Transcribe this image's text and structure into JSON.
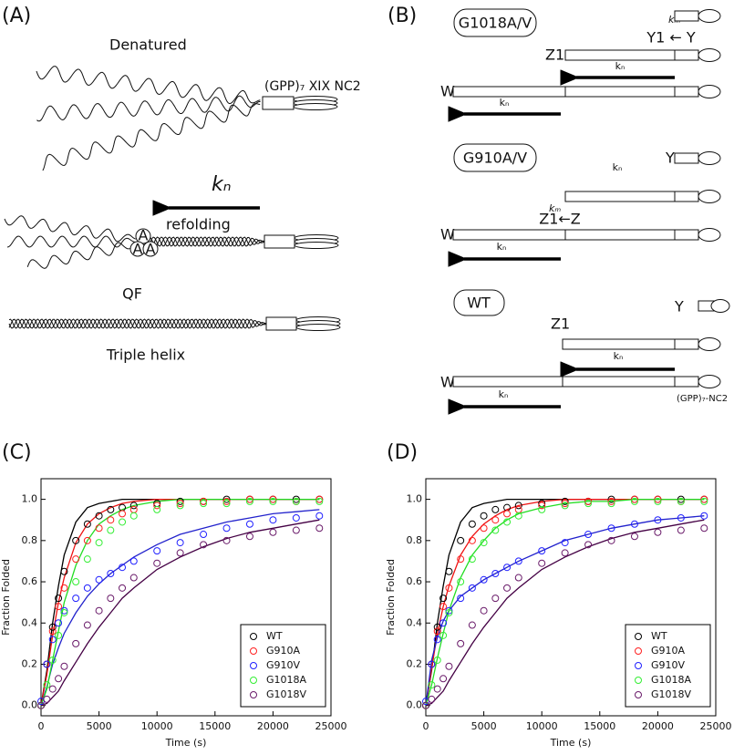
{
  "panel_a": {
    "label": "(A)",
    "denatured": "Denatured",
    "construct": "(GPP)₇ XIX NC2",
    "rate": "kₙ",
    "refolding": "refolding",
    "nuclei": [
      "A",
      "A",
      "A"
    ],
    "qf": "QF",
    "triple_helix": "Triple helix"
  },
  "panel_b": {
    "label": "(B)",
    "groups": [
      {
        "name": "G1018A/V",
        "km": "kₘ",
        "y": "Y1 ← Y",
        "z": "Z1",
        "kn_z": "kₙ",
        "w": "W",
        "kn_w": "kₙ"
      },
      {
        "name": "G910A/V",
        "kn_top": "kₙ",
        "y": "Y",
        "km": "kₘ",
        "z": "Z1←Z",
        "w": "W",
        "kn_w": "kₙ"
      },
      {
        "name": "WT",
        "y": "Y",
        "z": "Z1",
        "kn_z": "kₙ",
        "w": "W",
        "kn_w": "kₙ",
        "construct": "(GPP)₇-NC2"
      }
    ]
  },
  "chart_data": [
    {
      "type": "scatter",
      "panel_label": "(C)",
      "xlabel": "Time (s)",
      "ylabel": "Fraction Folded",
      "xlim": [
        0,
        25000
      ],
      "ylim": [
        -0.05,
        1.1
      ],
      "xticks": [
        0,
        5000,
        10000,
        15000,
        20000,
        25000
      ],
      "yticks": [
        {
          "value": 0,
          "label": "0.0"
        },
        {
          "value": 0.2,
          "label": "0.2"
        },
        {
          "value": 0.4,
          "label": "0.4"
        },
        {
          "value": 0.6,
          "label": "0.6"
        },
        {
          "value": 0.8,
          "label": "0.8"
        },
        {
          "value": 1,
          "label": "1.0"
        }
      ],
      "legend": "lower right",
      "x": [
        0,
        500,
        1000,
        1500,
        2000,
        3000,
        4000,
        5000,
        6000,
        7000,
        8000,
        10000,
        12000,
        14000,
        16000,
        18000,
        20000,
        22000,
        24000
      ],
      "series": [
        {
          "name": "WT",
          "color": "#000000",
          "fit_color": "#000000",
          "values": [
            0,
            0.2,
            0.38,
            0.52,
            0.65,
            0.8,
            0.88,
            0.92,
            0.95,
            0.96,
            0.97,
            0.98,
            0.99,
            0.99,
            1,
            1,
            1,
            1,
            1
          ],
          "fit": [
            0,
            0.17,
            0.4,
            0.58,
            0.73,
            0.89,
            0.96,
            0.98,
            0.99,
            1,
            1,
            1,
            1,
            1,
            1,
            1,
            1,
            1,
            1
          ]
        },
        {
          "name": "G910A",
          "color": "#ff2020",
          "fit_color": "#ee1111",
          "values": [
            0,
            0.2,
            0.36,
            0.48,
            0.57,
            0.71,
            0.8,
            0.86,
            0.9,
            0.93,
            0.95,
            0.97,
            0.98,
            0.99,
            0.99,
            1,
            1,
            0.99,
            1
          ],
          "fit": [
            0,
            0.15,
            0.34,
            0.5,
            0.62,
            0.79,
            0.88,
            0.93,
            0.96,
            0.98,
            0.99,
            1,
            1,
            1,
            1,
            1,
            1,
            1,
            1
          ]
        },
        {
          "name": "G910V",
          "color": "#2020ff",
          "fit_color": "#2222cc",
          "values": [
            0.02,
            0.2,
            0.32,
            0.4,
            0.46,
            0.52,
            0.57,
            0.61,
            0.64,
            0.67,
            0.7,
            0.75,
            0.79,
            0.83,
            0.86,
            0.88,
            0.9,
            0.91,
            0.92
          ],
          "fit": [
            0,
            0.09,
            0.2,
            0.28,
            0.35,
            0.45,
            0.53,
            0.59,
            0.64,
            0.68,
            0.72,
            0.78,
            0.83,
            0.86,
            0.89,
            0.91,
            0.93,
            0.94,
            0.95
          ]
        },
        {
          "name": "G1018A",
          "color": "#33ee33",
          "fit_color": "#22dd22",
          "values": [
            0,
            0.1,
            0.22,
            0.34,
            0.45,
            0.6,
            0.71,
            0.79,
            0.85,
            0.89,
            0.92,
            0.95,
            0.97,
            0.98,
            0.98,
            0.99,
            0.99,
            0.99,
            0.99
          ],
          "fit": [
            0,
            0.08,
            0.22,
            0.36,
            0.5,
            0.68,
            0.8,
            0.88,
            0.92,
            0.95,
            0.97,
            0.99,
            1,
            1,
            1,
            1,
            1,
            1,
            1
          ]
        },
        {
          "name": "G1018V",
          "color": "#6a1b6a",
          "fit_color": "#440044",
          "values": [
            0,
            0.03,
            0.08,
            0.13,
            0.19,
            0.3,
            0.39,
            0.46,
            0.52,
            0.57,
            0.62,
            0.69,
            0.74,
            0.78,
            0.8,
            0.82,
            0.84,
            0.85,
            0.86
          ],
          "fit": [
            0,
            0.01,
            0.04,
            0.07,
            0.12,
            0.21,
            0.3,
            0.38,
            0.45,
            0.52,
            0.57,
            0.66,
            0.72,
            0.77,
            0.81,
            0.84,
            0.86,
            0.88,
            0.9
          ]
        }
      ]
    },
    {
      "type": "scatter",
      "panel_label": "(D)",
      "xlabel": "Time (s)",
      "ylabel": "Fraction Folded",
      "xlim": [
        0,
        25000
      ],
      "ylim": [
        -0.05,
        1.1
      ],
      "xticks": [
        0,
        5000,
        10000,
        15000,
        20000,
        25000
      ],
      "yticks": [
        {
          "value": 0,
          "label": "0.0"
        },
        {
          "value": 0.2,
          "label": "0.2"
        },
        {
          "value": 0.4,
          "label": "0.4"
        },
        {
          "value": 0.6,
          "label": "0.6"
        },
        {
          "value": 0.8,
          "label": "0.8"
        },
        {
          "value": 1,
          "label": "1.0"
        }
      ],
      "legend": "lower right",
      "x": [
        0,
        500,
        1000,
        1500,
        2000,
        3000,
        4000,
        5000,
        6000,
        7000,
        8000,
        10000,
        12000,
        14000,
        16000,
        18000,
        20000,
        22000,
        24000
      ],
      "series": [
        {
          "name": "WT",
          "color": "#000000",
          "fit_color": "#000000",
          "values": [
            0,
            0.2,
            0.38,
            0.52,
            0.65,
            0.8,
            0.88,
            0.92,
            0.95,
            0.96,
            0.97,
            0.98,
            0.99,
            0.99,
            1,
            1,
            1,
            1,
            1
          ],
          "fit": [
            0,
            0.17,
            0.4,
            0.58,
            0.73,
            0.89,
            0.96,
            0.98,
            0.99,
            1,
            1,
            1,
            1,
            1,
            1,
            1,
            1,
            1,
            1
          ]
        },
        {
          "name": "G910A",
          "color": "#ff2020",
          "fit_color": "#ee1111",
          "values": [
            0,
            0.2,
            0.36,
            0.48,
            0.57,
            0.71,
            0.8,
            0.86,
            0.9,
            0.93,
            0.95,
            0.97,
            0.98,
            0.99,
            0.99,
            1,
            1,
            0.99,
            1
          ],
          "fit": [
            0,
            0.18,
            0.35,
            0.48,
            0.58,
            0.73,
            0.82,
            0.88,
            0.92,
            0.95,
            0.97,
            0.99,
            1,
            1,
            1,
            1,
            1,
            1,
            1
          ]
        },
        {
          "name": "G910V",
          "color": "#2020ff",
          "fit_color": "#2222cc",
          "values": [
            0.02,
            0.2,
            0.32,
            0.4,
            0.46,
            0.52,
            0.57,
            0.61,
            0.64,
            0.67,
            0.7,
            0.75,
            0.79,
            0.83,
            0.86,
            0.88,
            0.9,
            0.91,
            0.92
          ],
          "fit": [
            0,
            0.22,
            0.33,
            0.41,
            0.46,
            0.53,
            0.57,
            0.61,
            0.64,
            0.67,
            0.7,
            0.75,
            0.8,
            0.83,
            0.86,
            0.88,
            0.9,
            0.91,
            0.92
          ]
        },
        {
          "name": "G1018A",
          "color": "#33ee33",
          "fit_color": "#22dd22",
          "values": [
            0,
            0.1,
            0.22,
            0.34,
            0.45,
            0.6,
            0.71,
            0.79,
            0.85,
            0.89,
            0.92,
            0.95,
            0.97,
            0.98,
            0.98,
            0.99,
            0.99,
            0.99,
            0.99
          ],
          "fit": [
            0,
            0.1,
            0.23,
            0.35,
            0.46,
            0.62,
            0.73,
            0.8,
            0.86,
            0.9,
            0.93,
            0.96,
            0.98,
            0.99,
            0.99,
            1,
            1,
            1,
            1
          ]
        },
        {
          "name": "G1018V",
          "color": "#6a1b6a",
          "fit_color": "#440044",
          "values": [
            0,
            0.03,
            0.08,
            0.13,
            0.19,
            0.3,
            0.39,
            0.46,
            0.52,
            0.57,
            0.62,
            0.69,
            0.74,
            0.78,
            0.8,
            0.82,
            0.84,
            0.85,
            0.86
          ],
          "fit": [
            0,
            0.01,
            0.04,
            0.07,
            0.12,
            0.21,
            0.3,
            0.38,
            0.45,
            0.52,
            0.57,
            0.66,
            0.72,
            0.77,
            0.81,
            0.84,
            0.86,
            0.88,
            0.9
          ]
        }
      ]
    }
  ]
}
